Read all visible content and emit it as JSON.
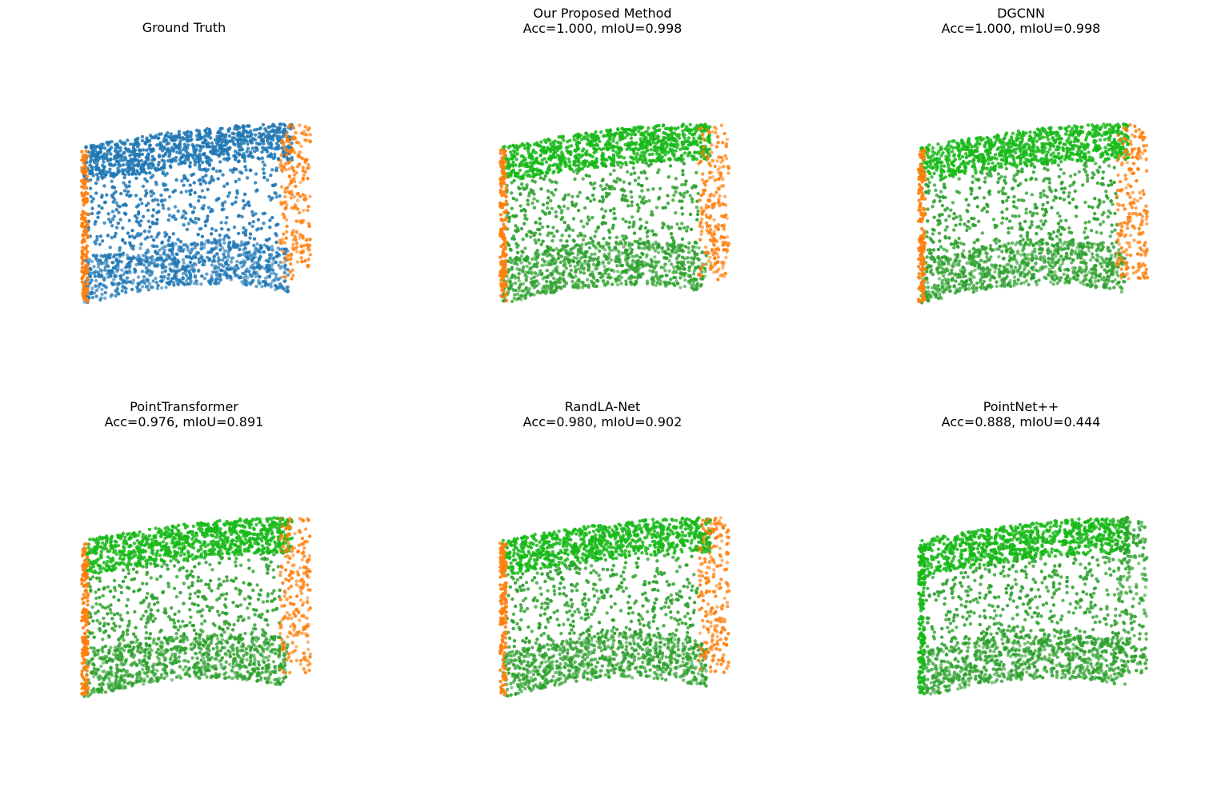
{
  "colors": {
    "ground_truth_main": "#1f77b4",
    "edge": "#ff7f0e",
    "predicted_main": "#2ca02c",
    "predicted_dark": "#18b818"
  },
  "chart_data": [
    {
      "type": "scatter",
      "title": "Ground Truth",
      "subtitle": "",
      "main_color": "#1f77b4",
      "left_edge": "orange",
      "right_edge": "orange",
      "axis": "off"
    },
    {
      "type": "scatter",
      "title": "Our Proposed Method",
      "subtitle": "Acc=1.000, mIoU=0.998",
      "acc": 1.0,
      "miou": 0.998,
      "main_color": "#2ca02c",
      "left_edge": "orange",
      "right_edge": "orange",
      "axis": "off"
    },
    {
      "type": "scatter",
      "title": "DGCNN",
      "subtitle": "Acc=1.000, mIoU=0.998",
      "acc": 1.0,
      "miou": 0.998,
      "main_color": "#2ca02c",
      "left_edge": "orange",
      "right_edge": "orange",
      "axis": "off"
    },
    {
      "type": "scatter",
      "title": "PointTransformer",
      "subtitle": "Acc=0.976, mIoU=0.891",
      "acc": 0.976,
      "miou": 0.891,
      "main_color": "#2ca02c",
      "left_edge": "orange",
      "right_edge": "orange",
      "axis": "off"
    },
    {
      "type": "scatter",
      "title": "RandLA-Net",
      "subtitle": "Acc=0.980, mIoU=0.902",
      "acc": 0.98,
      "miou": 0.902,
      "main_color": "#2ca02c",
      "left_edge": "orange",
      "right_edge": "orange",
      "axis": "off"
    },
    {
      "type": "scatter",
      "title": "PointNet++",
      "subtitle": "Acc=0.888, mIoU=0.444",
      "acc": 0.888,
      "miou": 0.444,
      "main_color": "#2ca02c",
      "left_edge": "green",
      "right_edge": "green",
      "axis": "off"
    }
  ]
}
